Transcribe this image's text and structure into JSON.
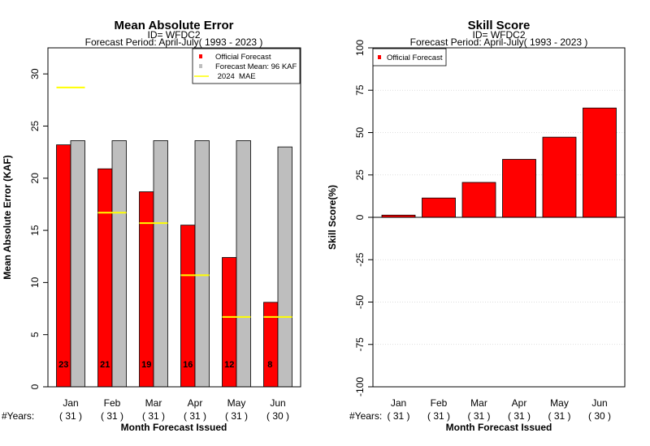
{
  "chart_data": [
    {
      "type": "bar",
      "title": "Mean Absolute Error",
      "subtitle_id": "ID= WFDC2",
      "subtitle_period": "Forecast Period: April-July( 1993 - 2023 )",
      "ylabel": "Mean Absolute Error (KAF)",
      "xlabel": "Month Forecast Issued",
      "years_label": "#Years:",
      "ylim": [
        0,
        32.5
      ],
      "yticks": [
        "0",
        "5",
        "10",
        "15",
        "20",
        "25",
        "30"
      ],
      "categories": [
        "Jan",
        "Feb",
        "Mar",
        "Apr",
        "May",
        "Jun"
      ],
      "years": [
        "( 31 )",
        "( 31 )",
        "( 31 )",
        "( 31 )",
        "( 31 )",
        "( 30 )"
      ],
      "series": [
        {
          "name": "Official Forecast",
          "color": "#ff0000",
          "values": [
            23.2,
            20.9,
            18.7,
            15.5,
            12.4,
            8.1
          ]
        },
        {
          "name": "Forecast Mean: 96 KAF",
          "color": "#bebebe",
          "values": [
            23.6,
            23.6,
            23.6,
            23.6,
            23.6,
            23.0
          ]
        }
      ],
      "mae_2024": {
        "name": " 2024  MAE",
        "color": "#ffff00",
        "values": [
          28.7,
          16.7,
          15.7,
          10.7,
          6.7,
          6.7
        ]
      },
      "bar_labels": [
        "23",
        "21",
        "19",
        "16",
        "12",
        "8"
      ],
      "legend_position": "top-right"
    },
    {
      "type": "bar",
      "title": "Skill Score",
      "subtitle_id": "ID= WFDC2",
      "subtitle_period": "Forecast Period: April-July( 1993 - 2023 )",
      "ylabel": "Skill Score(%)",
      "xlabel": "Month Forecast Issued",
      "years_label": "#Years:",
      "ylim": [
        -100,
        100
      ],
      "yticks": [
        "-100",
        "-75",
        "-50",
        "-25",
        "0",
        "25",
        "50",
        "75",
        "100"
      ],
      "grid": true,
      "categories": [
        "Jan",
        "Feb",
        "Mar",
        "Apr",
        "May",
        "Jun"
      ],
      "years": [
        "( 31 )",
        "( 31 )",
        "( 31 )",
        "( 31 )",
        "( 31 )",
        "( 30 )"
      ],
      "series": [
        {
          "name": "Official Forecast",
          "color": "#ff0000",
          "values": [
            1.3,
            11.4,
            20.6,
            34.2,
            47.3,
            64.5
          ]
        }
      ],
      "legend_position": "top-left"
    }
  ]
}
